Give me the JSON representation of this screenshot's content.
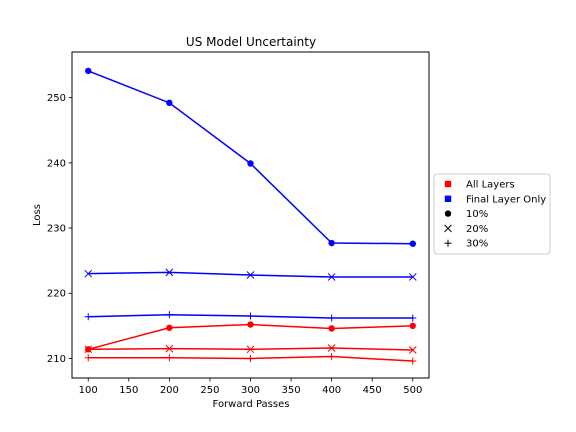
{
  "chart_data": {
    "type": "line",
    "title": "US Model Uncertainty",
    "xlabel": "Forward Passes",
    "ylabel": "Loss",
    "xlim": [
      80,
      520
    ],
    "ylim": [
      207,
      257
    ],
    "xticks": [
      100,
      150,
      200,
      250,
      300,
      350,
      400,
      450,
      500
    ],
    "yticks": [
      210,
      220,
      230,
      240,
      250
    ],
    "x": [
      100,
      200,
      300,
      400,
      500
    ],
    "legend_position": "outside-right",
    "colors": {
      "all_layers": "#ff0000",
      "final_layer_only": "#0000ff"
    },
    "legend": [
      {
        "label": "All Layers",
        "marker": "square",
        "color": "#ff0000"
      },
      {
        "label": "Final Layer Only",
        "marker": "square",
        "color": "#0000ff"
      },
      {
        "label": "10%",
        "marker": "circle",
        "color": "#000000"
      },
      {
        "label": "20%",
        "marker": "x",
        "color": "#000000"
      },
      {
        "label": "30%",
        "marker": "plus",
        "color": "#000000"
      }
    ],
    "series": [
      {
        "group": "All Layers",
        "dropout": "10%",
        "color": "#ff0000",
        "marker": "circle",
        "values": [
          211.4,
          214.7,
          215.2,
          214.6,
          215.0
        ]
      },
      {
        "group": "All Layers",
        "dropout": "20%",
        "color": "#ff0000",
        "marker": "x",
        "values": [
          211.4,
          211.5,
          211.4,
          211.6,
          211.3
        ]
      },
      {
        "group": "All Layers",
        "dropout": "30%",
        "color": "#ff0000",
        "marker": "plus",
        "values": [
          210.1,
          210.1,
          210.0,
          210.3,
          209.6
        ]
      },
      {
        "group": "Final Layer Only",
        "dropout": "10%",
        "color": "#0000ff",
        "marker": "circle",
        "values": [
          254.1,
          249.2,
          239.9,
          227.7,
          227.6
        ]
      },
      {
        "group": "Final Layer Only",
        "dropout": "20%",
        "color": "#0000ff",
        "marker": "x",
        "values": [
          223.0,
          223.2,
          222.8,
          222.5,
          222.5
        ]
      },
      {
        "group": "Final Layer Only",
        "dropout": "30%",
        "color": "#0000ff",
        "marker": "plus",
        "values": [
          216.4,
          216.7,
          216.5,
          216.2,
          216.2
        ]
      }
    ]
  }
}
